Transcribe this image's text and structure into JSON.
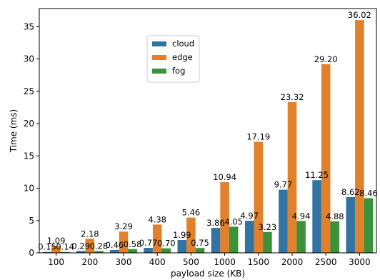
{
  "chart_data": {
    "type": "bar",
    "xlabel": "payload size (KB)",
    "ylabel": "Time (ms)",
    "categories": [
      "100",
      "200",
      "300",
      "400",
      "500",
      "1000",
      "1500",
      "2000",
      "2500",
      "3000"
    ],
    "series": [
      {
        "name": "cloud",
        "color": "#3274a1",
        "values": [
          0.15,
          0.29,
          0.46,
          0.77,
          1.99,
          3.86,
          4.97,
          9.77,
          11.25,
          8.62
        ],
        "labels": [
          "0.15",
          "0.29",
          "0.46",
          "0.77",
          "1.99",
          "3.86",
          "4.97",
          "9.77",
          "11.25",
          "8.62"
        ]
      },
      {
        "name": "edge",
        "color": "#e1812c",
        "values": [
          1.09,
          2.18,
          3.29,
          4.38,
          5.46,
          10.94,
          17.19,
          23.32,
          29.2,
          36.02
        ],
        "labels": [
          "1.09",
          "2.18",
          "3.29",
          "4.38",
          "5.46",
          "10.94",
          "17.19",
          "23.32",
          "29.20",
          "36.02"
        ]
      },
      {
        "name": "fog",
        "color": "#3a923a",
        "values": [
          0.14,
          0.28,
          0.58,
          0.7,
          0.75,
          4.05,
          3.23,
          4.94,
          4.88,
          8.46
        ],
        "labels": [
          "0.14",
          "0.28",
          "0.58",
          "0.70",
          "0.75",
          "4.05",
          "3.23",
          "4.94",
          "4.88",
          "8.46"
        ]
      }
    ],
    "ylim": [
      0,
      37.8
    ],
    "yticks": [
      "0",
      "5",
      "10",
      "15",
      "20",
      "25",
      "30",
      "35"
    ],
    "grid": false,
    "legend_position": "upper-center"
  }
}
